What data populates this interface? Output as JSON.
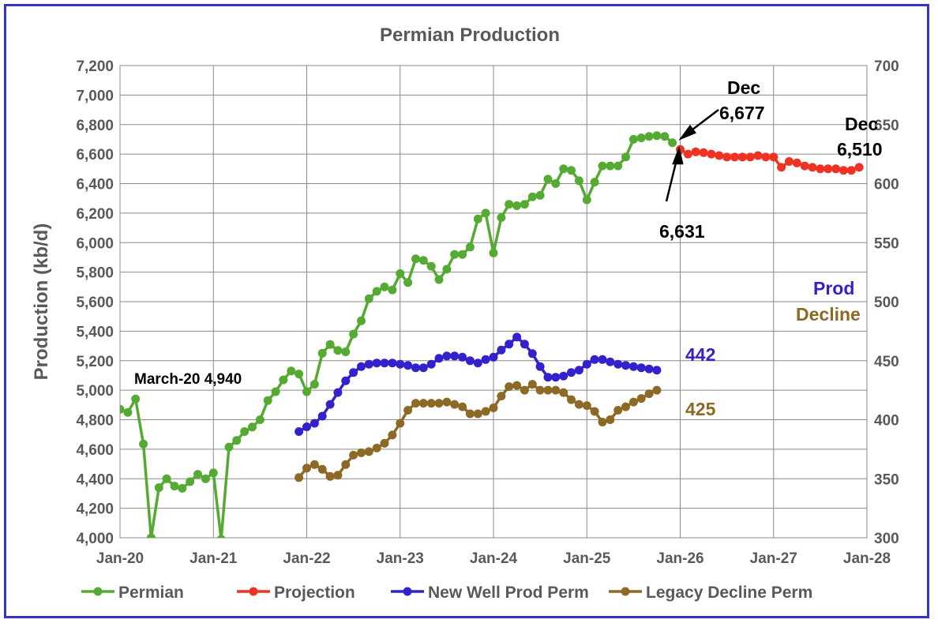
{
  "chart_data": {
    "type": "line",
    "title": "Permian Production",
    "ylabel": "Production (kb/d)",
    "xlabel": "",
    "ylim": [
      4000,
      7200
    ],
    "y2lim": [
      300,
      700
    ],
    "yticks": [
      "4,000",
      "4,200",
      "4,400",
      "4,600",
      "4,800",
      "5,000",
      "5,200",
      "5,400",
      "5,600",
      "5,800",
      "6,000",
      "6,200",
      "6,400",
      "6,600",
      "6,800",
      "7,000",
      "7,200"
    ],
    "y2ticks": [
      "300",
      "350",
      "400",
      "450",
      "500",
      "550",
      "600",
      "650",
      "700"
    ],
    "xticks": [
      "Jan-20",
      "Jan-21",
      "Jan-22",
      "Jan-23",
      "Jan-24",
      "Jan-25",
      "Jan-26",
      "Jan-27",
      "Jan-28"
    ],
    "grid": true,
    "legend_position": "bottom",
    "series": [
      {
        "name": "Permian",
        "axis": "left",
        "color": "#55aa33",
        "start_month": 0,
        "values": [
          4870,
          4850,
          4940,
          4635,
          4000,
          4340,
          4400,
          4350,
          4335,
          4380,
          4430,
          4400,
          4440,
          3990,
          4615,
          4660,
          4720,
          4750,
          4800,
          4930,
          4990,
          5070,
          5130,
          5110,
          4990,
          5040,
          5250,
          5310,
          5270,
          5260,
          5380,
          5470,
          5620,
          5670,
          5700,
          5680,
          5790,
          5730,
          5890,
          5880,
          5840,
          5750,
          5820,
          5920,
          5920,
          5970,
          6160,
          6200,
          5930,
          6170,
          6260,
          6250,
          6260,
          6310,
          6320,
          6430,
          6400,
          6500,
          6490,
          6420,
          6290,
          6410,
          6520,
          6520,
          6520,
          6580,
          6700,
          6710,
          6720,
          6725,
          6720,
          6677
        ]
      },
      {
        "name": "Projection",
        "axis": "left",
        "color": "#ee3322",
        "start_month": 72,
        "values": [
          6631,
          6600,
          6615,
          6610,
          6600,
          6590,
          6580,
          6580,
          6580,
          6580,
          6590,
          6580,
          6580,
          6510,
          6550,
          6540,
          6520,
          6510,
          6500,
          6500,
          6500,
          6490,
          6490,
          6510
        ]
      },
      {
        "name": "New Well Prod Perm",
        "axis": "right",
        "color": "#3322cc",
        "start_month": 23,
        "values": [
          390,
          394,
          397,
          403,
          413,
          423,
          433,
          440,
          445,
          447,
          448,
          448,
          448,
          447,
          446,
          444,
          444,
          447,
          452,
          454,
          454,
          453,
          450,
          448,
          451,
          453,
          459,
          464,
          470,
          464,
          456,
          445,
          436,
          436,
          437,
          440,
          442,
          447,
          451,
          451,
          449,
          447,
          446,
          445,
          444,
          443,
          442
        ]
      },
      {
        "name": "Legacy Decline Perm",
        "axis": "right",
        "color": "#8c6a26",
        "start_month": 23,
        "values": [
          351,
          359,
          362,
          358,
          352,
          353,
          362,
          370,
          372,
          373,
          376,
          380,
          387,
          397,
          408,
          414,
          414,
          414,
          414,
          415,
          413,
          411,
          405,
          405,
          407,
          410,
          420,
          428,
          429,
          425,
          430,
          425,
          425,
          425,
          423,
          417,
          413,
          412,
          407,
          398,
          400,
          408,
          411,
          415,
          418,
          422,
          425
        ]
      }
    ],
    "annotations": [
      {
        "text": "March-20 4,940",
        "color": "#000000"
      },
      {
        "text": "Dec",
        "color": "#000000"
      },
      {
        "text": "6,677",
        "color": "#000000"
      },
      {
        "text": "6,631",
        "color": "#000000"
      },
      {
        "text": "Dec",
        "color": "#000000"
      },
      {
        "text": "6,510",
        "color": "#000000"
      },
      {
        "text": "442",
        "color": "#3322cc"
      },
      {
        "text": "425",
        "color": "#8c6a26"
      },
      {
        "text": "Prod",
        "color": "#3322cc"
      },
      {
        "text": "Decline",
        "color": "#8c6a26"
      }
    ]
  }
}
